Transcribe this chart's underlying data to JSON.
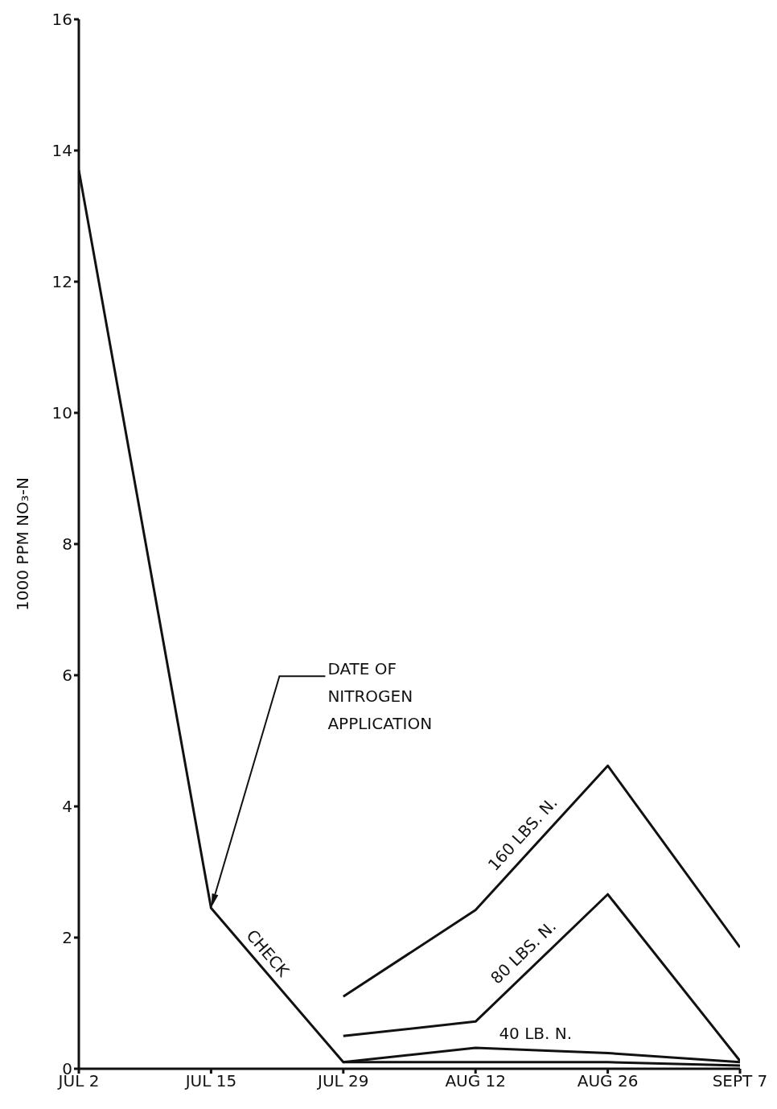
{
  "chart_data": {
    "type": "line",
    "ylabel": "1000 PPM NO₃-N",
    "categories": [
      "JUL 2",
      "JUL 15",
      "JUL 29",
      "AUG 12",
      "AUG 26",
      "SEPT 7"
    ],
    "series": [
      {
        "name": "CHECK",
        "color": "#111111",
        "values": [
          13.7,
          2.45,
          0.1,
          0.1,
          0.1,
          0.05
        ]
      },
      {
        "name": "160 LBS. N.",
        "color": "#111111",
        "values": [
          null,
          null,
          1.1,
          2.42,
          4.62,
          1.85
        ]
      },
      {
        "name": "80 LBS. N.",
        "color": "#111111",
        "values": [
          null,
          null,
          0.5,
          0.72,
          2.66,
          0.12
        ]
      },
      {
        "name": "40 LB. N.",
        "color": "#111111",
        "values": [
          null,
          null,
          0.1,
          0.32,
          0.24,
          0.1
        ]
      }
    ],
    "ylim": [
      0,
      16
    ],
    "yticks": [
      0,
      2,
      4,
      6,
      8,
      10,
      12,
      14,
      16
    ],
    "grid": false,
    "legend": false,
    "marker": "none",
    "line_style": "solid",
    "annotations": [
      "DATE OF NITROGEN APPLICATION"
    ]
  }
}
